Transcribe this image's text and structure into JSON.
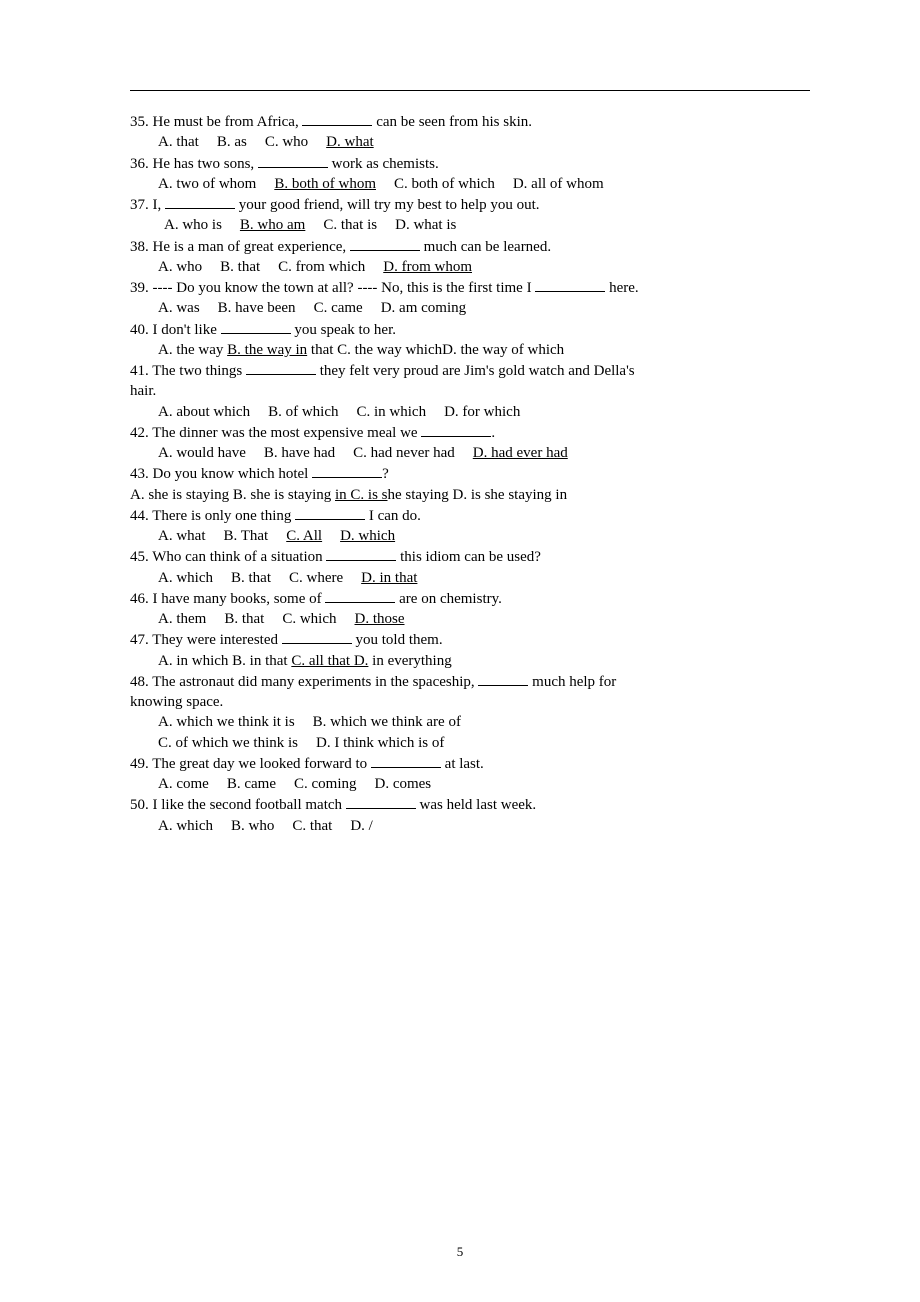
{
  "page_number": "5",
  "questions": [
    {
      "num": "35",
      "stem_pre": "35. He must be from Africa, ",
      "stem_post": " can be seen from his skin.",
      "options": [
        "A. that",
        "B. as",
        "C. who",
        "D. what"
      ],
      "underline_idx": 3
    },
    {
      "num": "36",
      "stem_pre": "36. He has two sons, ",
      "stem_post": " work as chemists.",
      "options": [
        "A. two of whom",
        "B. both of whom",
        "C. both of which",
        "D. all of whom"
      ],
      "underline_idx": 1
    },
    {
      "num": "37",
      "stem_pre": "37. I, ",
      "stem_post": " your good friend, will try my best to help you out.",
      "options": [
        "A. who is",
        "B. who am",
        "C. that is",
        "D. what is"
      ],
      "underline_idx": 1,
      "options_extra_indent": true
    },
    {
      "num": "38",
      "stem_pre": "38. He is a man of great experience, ",
      "stem_post": " much can be learned.",
      "options": [
        "A. who",
        "B. that",
        "C. from which",
        "D. from whom"
      ],
      "underline_idx": 3
    },
    {
      "num": "39",
      "stem_pre": "39. ---- Do you know the town at all? ---- No, this is the first time I ",
      "stem_post": " here.",
      "options": [
        "A. was",
        "B. have been",
        "C. came",
        "D. am coming"
      ],
      "underline_idx": null
    },
    {
      "num": "40",
      "stem_pre": "40. I don't like ",
      "stem_post": " you speak to her.",
      "options_inline": "A. the way B. the way in that C. the way whichD. the way of which",
      "underline_text": "B. the way in"
    },
    {
      "num": "41",
      "stem_pre": "41. The two things ",
      "stem_post": " they felt very proud are Jim's gold watch and Della's",
      "continuation": "hair.",
      "options": [
        "A. about which",
        "B. of which",
        "C. in which",
        "D. for which"
      ],
      "underline_idx": null
    },
    {
      "num": "42",
      "stem_pre": "42. The dinner was the most expensive meal we ",
      "stem_post": ".",
      "options": [
        "A. would have",
        "B. have had",
        "C. had never had",
        "D. had ever had"
      ],
      "underline_idx": 3
    },
    {
      "num": "43",
      "stem_pre": "43. Do you know which hotel ",
      "stem_post": "?",
      "options_noindent": true,
      "options_inline": "A. she is staying B. she is staying in C. is she staying D. is she staying in",
      "underline_text": "in C. is s"
    },
    {
      "num": "44",
      "stem_pre": "44. There is only one thing ",
      "stem_post": " I can do.",
      "options": [
        "A. what",
        "B. That",
        "C. All",
        "D. which"
      ],
      "underline_idx_multi": [
        2,
        3
      ]
    },
    {
      "num": "45",
      "stem_pre": "45. Who can think of a situation ",
      "stem_post": " this idiom can be used?",
      "options": [
        "A. which",
        "B. that",
        "C. where",
        "D. in that"
      ],
      "underline_idx": 3
    },
    {
      "num": "46",
      "stem_pre": "46. I have many books, some of ",
      "stem_post": " are on chemistry.",
      "options": [
        "A. them",
        "B. that",
        "C. which",
        "D. those"
      ],
      "underline_idx": 3
    },
    {
      "num": "47",
      "stem_pre": "47. They were interested ",
      "stem_post": " you told them.",
      "options_inline": "A. in which B. in that C. all that D. in everything",
      "underline_text": "C. all that D."
    },
    {
      "num": "48",
      "stem_pre": "48.  The  astronaut  did  many  experiments  in  the  spaceship,  ",
      "stem_post": "  much  help  for",
      "continuation": "knowing space.",
      "justify": true,
      "options_two_line": [
        [
          "A. which we think it is",
          "B. which we think are of"
        ],
        [
          "C. of which we think is",
          "D. I think which is of"
        ]
      ]
    },
    {
      "num": "49",
      "stem_pre": "49. The great day we looked forward to ",
      "stem_post": " at last.",
      "options": [
        "A. come",
        "B. came",
        "C. coming",
        "D. comes"
      ],
      "underline_idx": null
    },
    {
      "num": "50",
      "stem_pre": "50. I like the second football match ",
      "stem_post": " was held last week.",
      "options": [
        "A. which",
        "B. who",
        "C. that",
        "D. /"
      ],
      "underline_idx": null
    }
  ]
}
